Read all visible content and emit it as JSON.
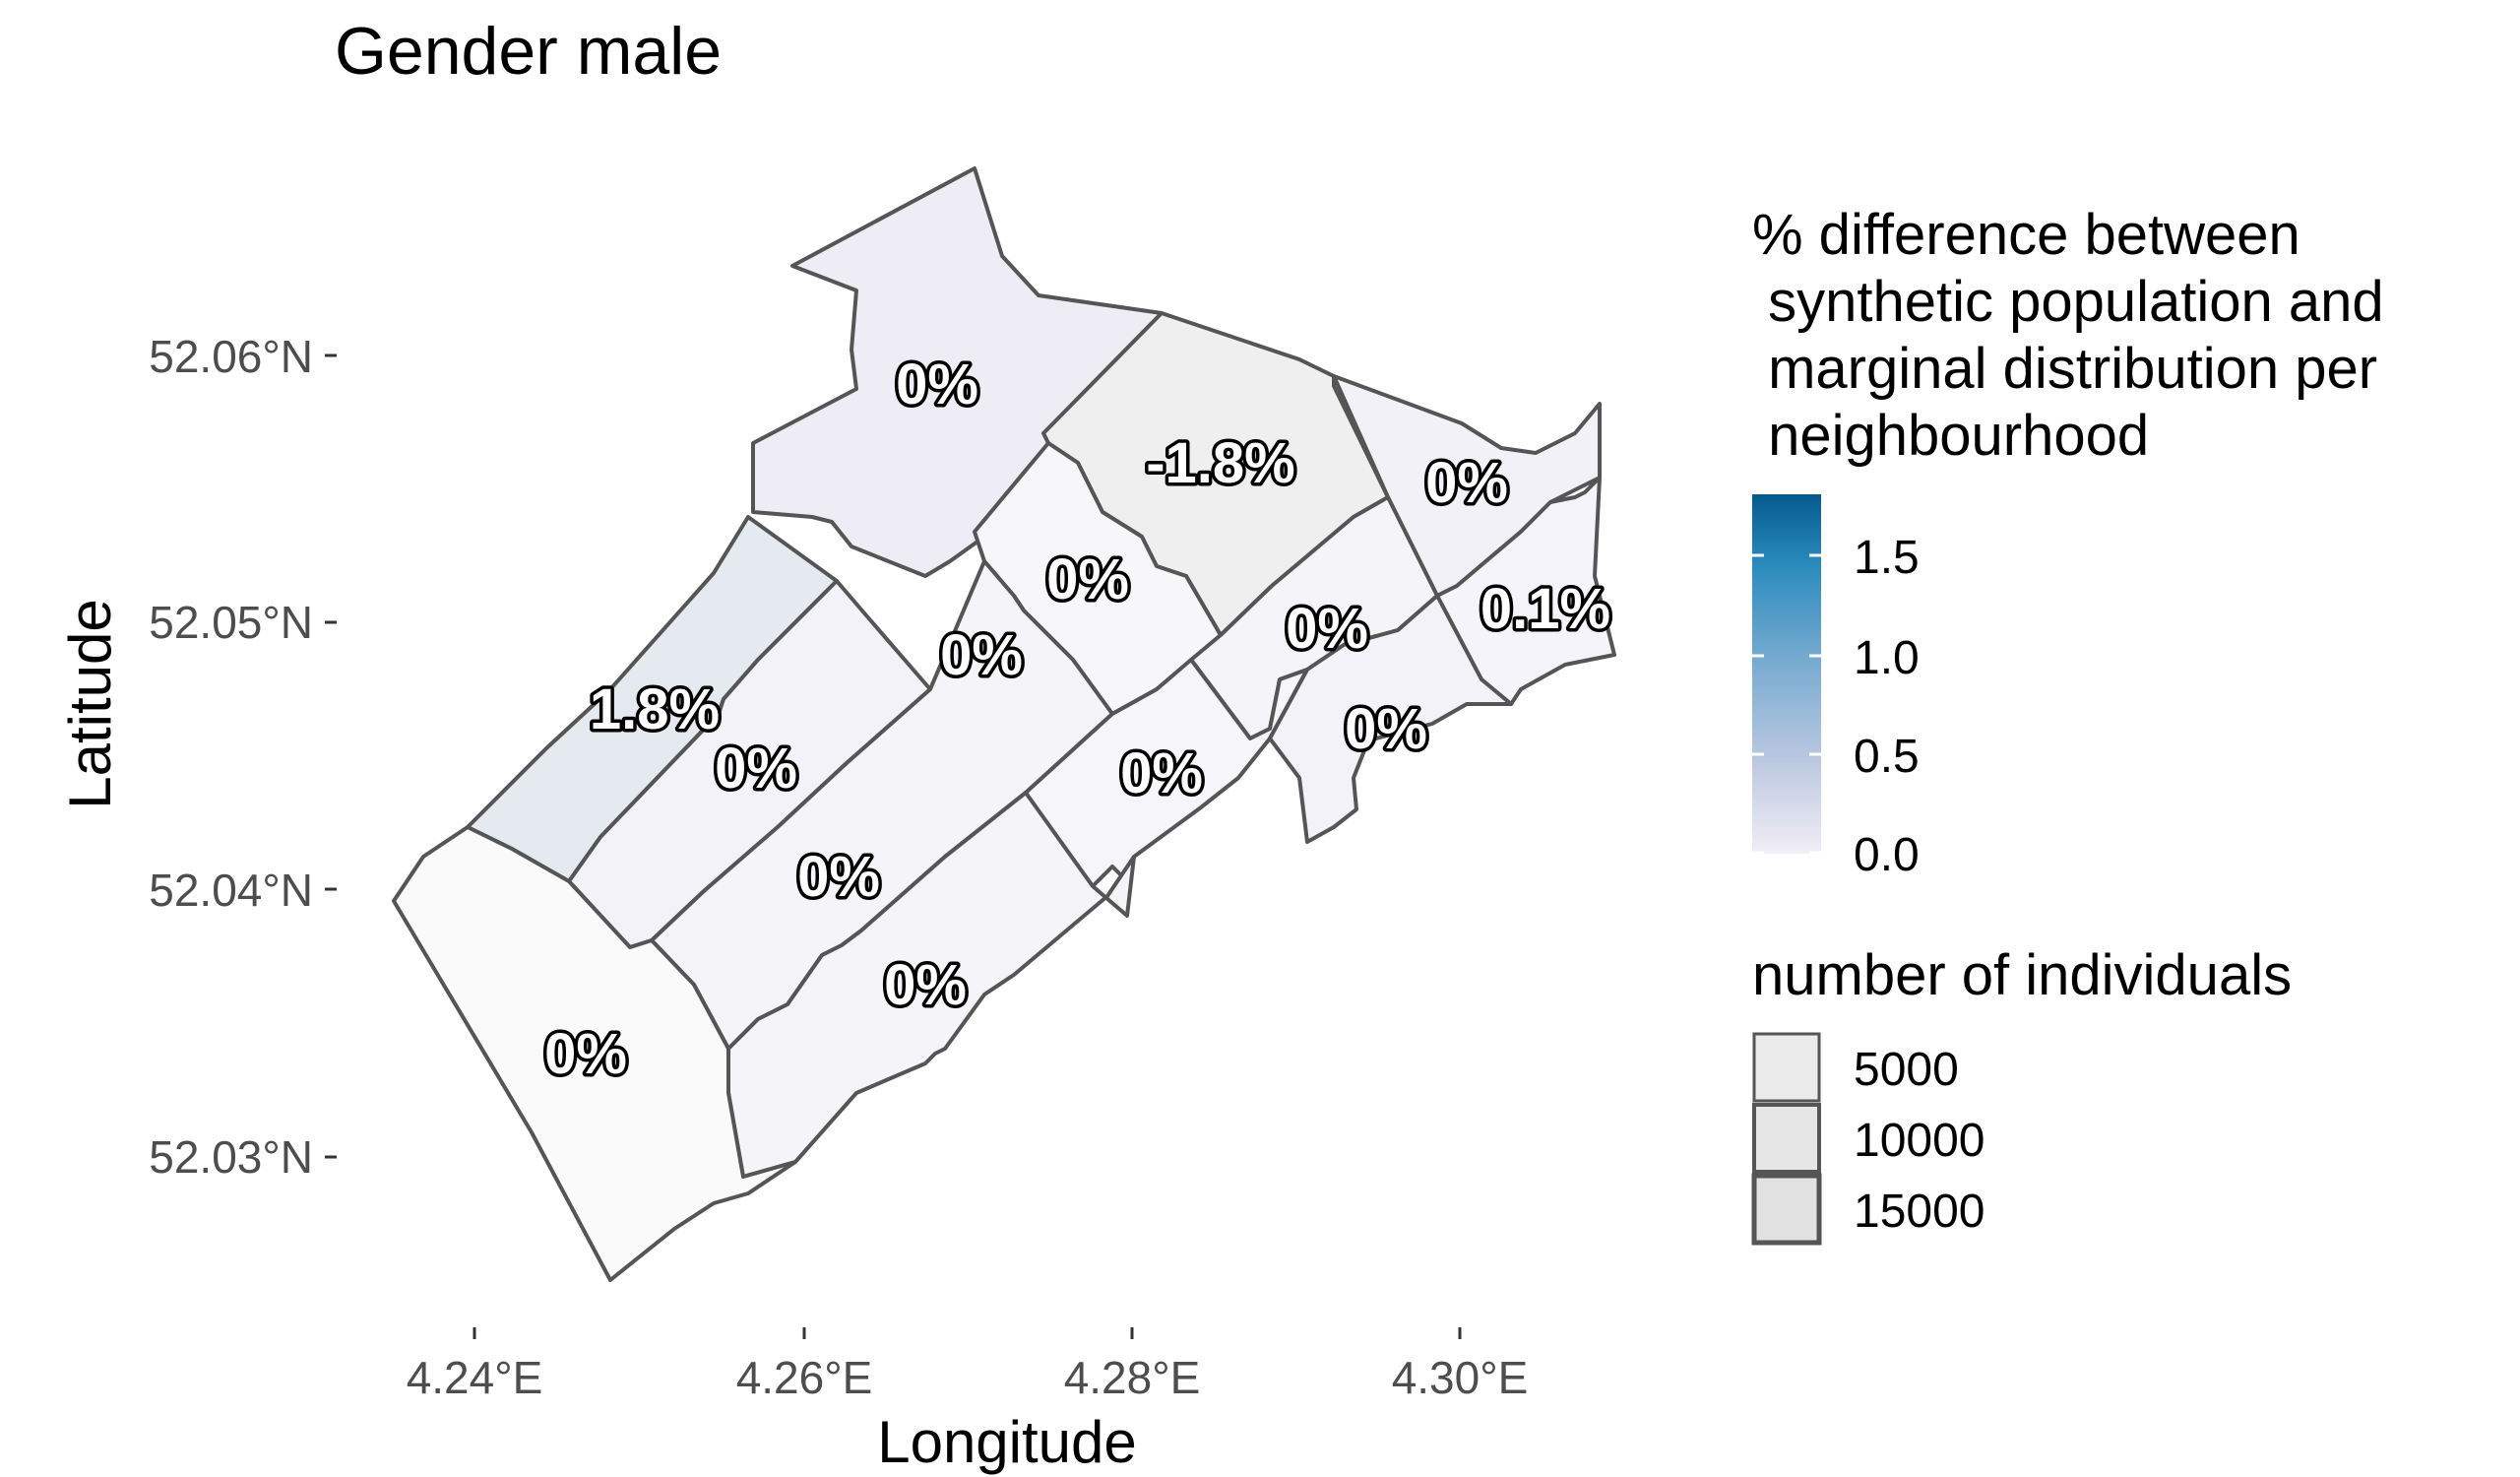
{
  "chart_data": {
    "type": "choropleth",
    "title": "Gender male",
    "xlabel": "Longitude",
    "ylabel": "Latitude",
    "x_ticks": [
      "4.24°E",
      "4.26°E",
      "4.28°E",
      "4.30°E"
    ],
    "y_ticks": [
      "52.06°N",
      "52.05°N",
      "52.04°N",
      "52.03°N"
    ],
    "neighbourhoods": [
      {
        "label": "0%",
        "value": 0.0
      },
      {
        "label": "-1.8%",
        "value": -1.8
      },
      {
        "label": "0%",
        "value": 0.0
      },
      {
        "label": "0%",
        "value": 0.0
      },
      {
        "label": "0%",
        "value": 0.0
      },
      {
        "label": "0.1%",
        "value": 0.1
      },
      {
        "label": "1.8%",
        "value": 1.8
      },
      {
        "label": "0%",
        "value": 0.0
      },
      {
        "label": "0%",
        "value": 0.0
      },
      {
        "label": "0%",
        "value": 0.0
      },
      {
        "label": "0%",
        "value": 0.0
      },
      {
        "label": "0%",
        "value": 0.0
      },
      {
        "label": "0%",
        "value": 0.0
      },
      {
        "label": "0%",
        "value": 0.0
      },
      {
        "label": "0%",
        "value": 0.0
      }
    ],
    "color_legend": {
      "title_lines": [
        "% difference between",
        " synthetic population and",
        " marginal distribution per",
        " neighbourhood"
      ],
      "breaks": [
        "1.5",
        "1.0",
        "0.5",
        "0.0"
      ],
      "colors": [
        "#f1eef6",
        "#bdc9e1",
        "#74a9cf",
        "#2b8cbe",
        "#045a8d"
      ]
    },
    "size_legend": {
      "title": "number of individuals",
      "breaks": [
        "5000",
        "10000",
        "15000"
      ]
    }
  }
}
